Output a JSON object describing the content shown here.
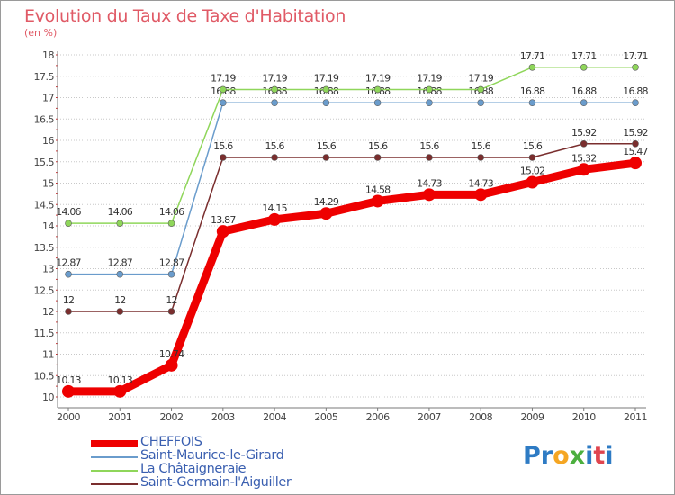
{
  "header": {
    "title": "Evolution du Taux de Taxe d'Habitation",
    "subtitle": "(en %)"
  },
  "brand": {
    "chars": [
      {
        "c": "P",
        "color": "#2e7bc4"
      },
      {
        "c": "r",
        "color": "#2e7bc4"
      },
      {
        "c": "o",
        "color": "#f5a623"
      },
      {
        "c": "x",
        "color": "#4caf3e"
      },
      {
        "c": "i",
        "color": "#2e7bc4"
      },
      {
        "c": "t",
        "color": "#e0454f"
      },
      {
        "c": "i",
        "color": "#2e7bc4"
      }
    ]
  },
  "chart_data": {
    "type": "line",
    "title": "Evolution du Taux de Taxe d'Habitation",
    "subtitle": "(en %)",
    "xlabel": "",
    "ylabel": "",
    "x": [
      "2000",
      "2001",
      "2002",
      "2003",
      "2004",
      "2005",
      "2006",
      "2007",
      "2008",
      "2009",
      "2010",
      "2011"
    ],
    "ylim": [
      10,
      18
    ],
    "yticks": [
      "10",
      "10.5",
      "11",
      "11.5",
      "12",
      "12.5",
      "13",
      "13.5",
      "14",
      "14.5",
      "15",
      "15.5",
      "16",
      "16.5",
      "17",
      "17.5",
      "18"
    ],
    "grid": "horizontal dotted",
    "series": [
      {
        "name": "CHEFFOIS",
        "color": "#ee0000",
        "emphasis": true,
        "values": [
          10.13,
          10.13,
          10.74,
          13.87,
          14.15,
          14.29,
          14.58,
          14.73,
          14.73,
          15.02,
          15.32,
          15.47
        ],
        "labels": [
          "10.13",
          "10.13",
          "10.74",
          "13.87",
          "14.15",
          "14.29",
          "14.58",
          "14.73",
          "14.73",
          "15.02",
          "15.32",
          "15.47"
        ]
      },
      {
        "name": "Saint-Maurice-le-Girard",
        "color": "#6a9ccc",
        "emphasis": false,
        "values": [
          12.87,
          12.87,
          12.87,
          16.88,
          16.88,
          16.88,
          16.88,
          16.88,
          16.88,
          16.88,
          16.88,
          16.88
        ],
        "labels": [
          "12.87",
          "12.87",
          "12.87",
          "16.88",
          "16.88",
          "16.88",
          "16.88",
          "16.88",
          "16.88",
          "16.88",
          "16.88",
          "16.88"
        ]
      },
      {
        "name": "La Châtaigneraie",
        "color": "#8fd65a",
        "emphasis": false,
        "values": [
          14.06,
          14.06,
          14.06,
          17.19,
          17.19,
          17.19,
          17.19,
          17.19,
          17.19,
          17.71,
          17.71,
          17.71
        ],
        "labels": [
          "14.06",
          "14.06",
          "14.06",
          "17.19",
          "17.19",
          "17.19",
          "17.19",
          "17.19",
          "17.19",
          "17.71",
          "17.71",
          "17.71"
        ]
      },
      {
        "name": "Saint-Germain-l'Aiguiller",
        "color": "#7a2e2e",
        "emphasis": false,
        "values": [
          12,
          12,
          12,
          15.6,
          15.6,
          15.6,
          15.6,
          15.6,
          15.6,
          15.6,
          15.92,
          15.92
        ],
        "labels": [
          "12",
          "12",
          "12",
          "15.6",
          "15.6",
          "15.6",
          "15.6",
          "15.6",
          "15.6",
          "15.6",
          "15.92",
          "15.92"
        ]
      }
    ],
    "legend": "bottom-left"
  }
}
